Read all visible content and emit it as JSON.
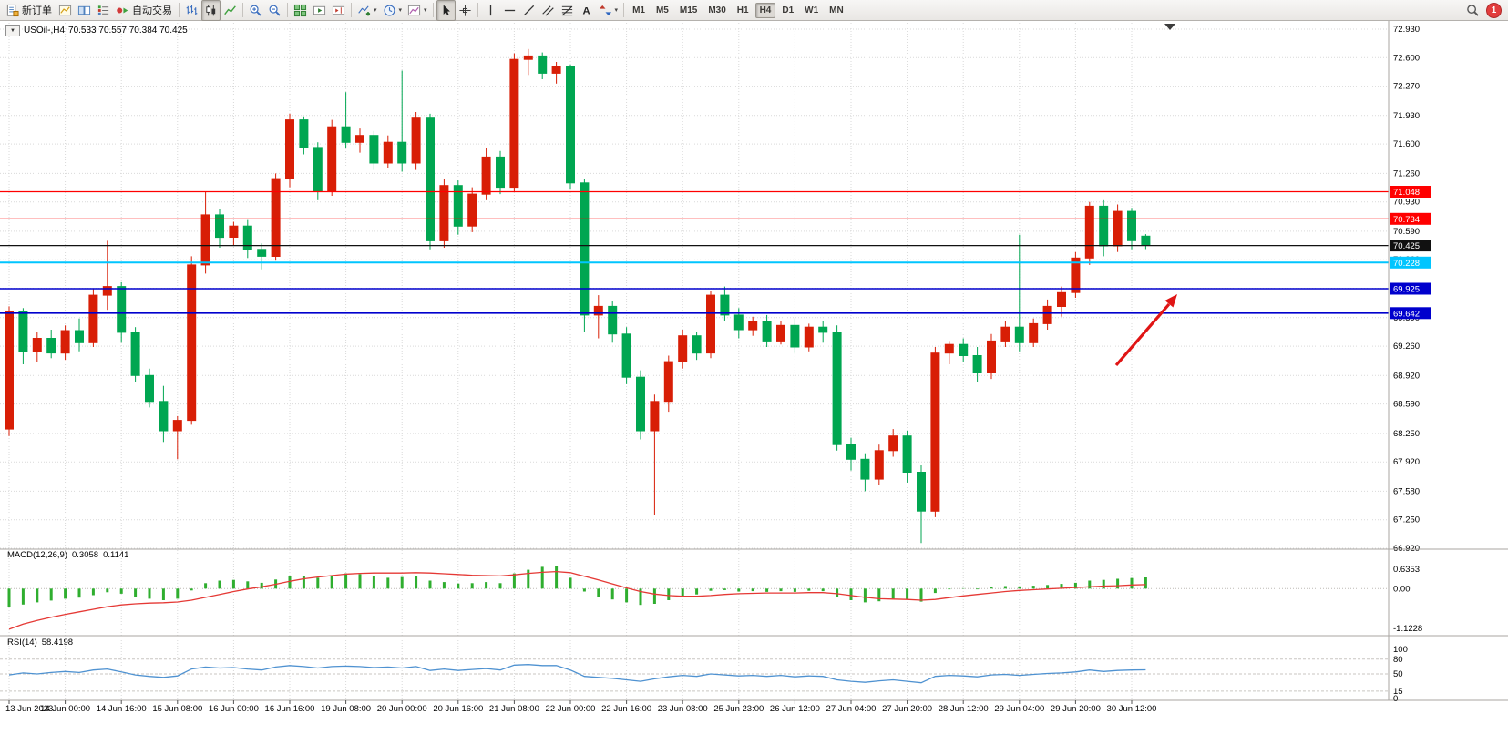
{
  "header": {
    "symbol_tf": "USOil-,H4",
    "ohlc": "70.533 70.557 70.384 70.425"
  },
  "toolbar": {
    "groups": [
      {
        "items": [
          {
            "name": "new-order-button",
            "icon": "new-order",
            "label": "新订单"
          },
          {
            "name": "new-chart-button",
            "icon": "new-chart"
          },
          {
            "name": "profiles-button",
            "icon": "profiles"
          },
          {
            "name": "market-watch-button",
            "icon": "market-watch"
          },
          {
            "name": "auto-trading-button",
            "icon": "auto-trading",
            "label": "自动交易"
          }
        ]
      },
      {
        "items": [
          {
            "name": "bar-chart-button",
            "icon": "bar-chart"
          },
          {
            "name": "candle-chart-button",
            "icon": "candle-chart",
            "active": true
          },
          {
            "name": "line-chart-button",
            "icon": "line-chart"
          }
        ]
      },
      {
        "items": [
          {
            "name": "zoom-in-button",
            "icon": "zoom-in"
          },
          {
            "name": "zoom-out-button",
            "icon": "zoom-out"
          }
        ]
      },
      {
        "items": [
          {
            "name": "tile-windows-button",
            "icon": "tile-windows"
          },
          {
            "name": "auto-scroll-button",
            "icon": "auto-scroll"
          },
          {
            "name": "chart-shift-button",
            "icon": "chart-shift"
          }
        ]
      },
      {
        "items": [
          {
            "name": "indicators-button",
            "icon": "indicators",
            "caret": true
          },
          {
            "name": "periods-button",
            "icon": "periods",
            "caret": true
          },
          {
            "name": "templates-button",
            "icon": "templates",
            "caret": true
          }
        ]
      },
      {
        "items": [
          {
            "name": "cursor-button",
            "icon": "cursor",
            "active": true
          },
          {
            "name": "crosshair-button",
            "icon": "crosshair"
          }
        ]
      },
      {
        "items": [
          {
            "name": "vertical-line-button",
            "icon": "vline"
          },
          {
            "name": "horizontal-line-button",
            "icon": "hline"
          },
          {
            "name": "trendline-button",
            "icon": "trendline"
          },
          {
            "name": "channel-button",
            "icon": "channel"
          },
          {
            "name": "fibonacci-button",
            "icon": "fibonacci"
          },
          {
            "name": "text-button",
            "icon": "text"
          },
          {
            "name": "arrows-button",
            "icon": "arrows",
            "caret": true
          }
        ]
      }
    ],
    "timeframes": [
      "M1",
      "M5",
      "M15",
      "M30",
      "H1",
      "H4",
      "D1",
      "W1",
      "MN"
    ],
    "active_timeframe": "H4",
    "notification_count": "1"
  },
  "chart_data": {
    "type": "candlestick",
    "symbol": "USOil-",
    "timeframe": "H4",
    "current_ohlc": {
      "open": 70.533,
      "high": 70.557,
      "low": 70.384,
      "close": 70.425
    },
    "colors": {
      "up": "#d81e06",
      "down": "#00a651",
      "macd_histogram": "#2fae2f",
      "macd_signal": "#e53935",
      "rsi_line": "#4f92d1",
      "grid": "#d9d9d9",
      "level_red": "#ff0000",
      "level_blue": "#0000cd",
      "level_cyan": "#00c5ff",
      "bid_black": "#111111",
      "arrow_red": "#e01515"
    },
    "price_axis": {
      "min": 66.92,
      "max": 72.93,
      "ticks": [
        72.93,
        72.6,
        72.27,
        71.93,
        71.6,
        71.26,
        70.93,
        70.59,
        70.26,
        69.93,
        69.59,
        69.26,
        68.92,
        68.59,
        68.25,
        67.92,
        67.58,
        67.25,
        66.92
      ]
    },
    "time_labels": [
      "13 Jun 2023",
      "14 Jun 00:00",
      "14 Jun 16:00",
      "15 Jun 08:00",
      "16 Jun 00:00",
      "16 Jun 16:00",
      "19 Jun 08:00",
      "20 Jun 00:00",
      "20 Jun 16:00",
      "21 Jun 08:00",
      "22 Jun 00:00",
      "22 Jun 16:00",
      "23 Jun 08:00",
      "25 Jun 23:00",
      "26 Jun 12:00",
      "27 Jun 04:00",
      "27 Jun 20:00",
      "28 Jun 12:00",
      "29 Jun 04:00",
      "29 Jun 20:00",
      "30 Jun 12:00"
    ],
    "candles": [
      [
        68.3,
        69.72,
        68.22,
        69.66
      ],
      [
        69.66,
        69.7,
        69.05,
        69.2
      ],
      [
        69.2,
        69.42,
        69.08,
        69.35
      ],
      [
        69.35,
        69.45,
        69.12,
        69.18
      ],
      [
        69.18,
        69.5,
        69.1,
        69.44
      ],
      [
        69.44,
        69.58,
        69.2,
        69.3
      ],
      [
        69.3,
        69.92,
        69.25,
        69.85
      ],
      [
        69.85,
        70.48,
        69.68,
        69.95
      ],
      [
        69.95,
        70.0,
        69.3,
        69.42
      ],
      [
        69.42,
        69.48,
        68.85,
        68.92
      ],
      [
        68.92,
        69.0,
        68.55,
        68.62
      ],
      [
        68.62,
        68.8,
        68.15,
        68.28
      ],
      [
        68.28,
        68.45,
        67.95,
        68.4
      ],
      [
        68.4,
        70.3,
        68.35,
        70.2
      ],
      [
        70.2,
        71.05,
        70.1,
        70.78
      ],
      [
        70.78,
        70.85,
        70.4,
        70.52
      ],
      [
        70.52,
        70.7,
        70.42,
        70.65
      ],
      [
        70.65,
        70.72,
        70.28,
        70.38
      ],
      [
        70.38,
        70.45,
        70.15,
        70.3
      ],
      [
        70.3,
        71.26,
        70.25,
        71.2
      ],
      [
        71.2,
        71.95,
        71.1,
        71.88
      ],
      [
        71.88,
        71.92,
        71.48,
        71.56
      ],
      [
        71.56,
        71.62,
        70.95,
        71.05
      ],
      [
        71.05,
        71.88,
        71.0,
        71.8
      ],
      [
        71.8,
        72.2,
        71.55,
        71.62
      ],
      [
        71.62,
        71.78,
        71.5,
        71.7
      ],
      [
        71.7,
        71.75,
        71.3,
        71.38
      ],
      [
        71.38,
        71.7,
        71.32,
        71.62
      ],
      [
        71.62,
        72.45,
        71.28,
        71.38
      ],
      [
        71.38,
        71.97,
        71.3,
        71.9
      ],
      [
        71.9,
        71.95,
        70.38,
        70.48
      ],
      [
        70.48,
        71.2,
        70.4,
        71.12
      ],
      [
        71.12,
        71.18,
        70.55,
        70.65
      ],
      [
        70.65,
        71.1,
        70.58,
        71.02
      ],
      [
        71.02,
        71.55,
        70.95,
        71.45
      ],
      [
        71.45,
        71.52,
        71.02,
        71.1
      ],
      [
        71.1,
        72.65,
        71.05,
        72.58
      ],
      [
        72.58,
        72.7,
        72.4,
        72.62
      ],
      [
        72.62,
        72.66,
        72.35,
        72.42
      ],
      [
        72.42,
        72.55,
        72.3,
        72.5
      ],
      [
        72.5,
        72.52,
        71.08,
        71.15
      ],
      [
        71.15,
        71.2,
        69.42,
        69.62
      ],
      [
        69.62,
        69.85,
        69.35,
        69.72
      ],
      [
        69.72,
        69.78,
        69.3,
        69.4
      ],
      [
        69.4,
        69.48,
        68.82,
        68.9
      ],
      [
        68.9,
        68.98,
        68.18,
        68.28
      ],
      [
        68.28,
        68.7,
        67.3,
        68.62
      ],
      [
        68.62,
        69.15,
        68.5,
        69.08
      ],
      [
        69.08,
        69.45,
        69.0,
        69.38
      ],
      [
        69.38,
        69.42,
        69.1,
        69.18
      ],
      [
        69.18,
        69.9,
        69.12,
        69.85
      ],
      [
        69.85,
        69.95,
        69.55,
        69.62
      ],
      [
        69.62,
        69.7,
        69.35,
        69.45
      ],
      [
        69.45,
        69.6,
        69.38,
        69.55
      ],
      [
        69.55,
        69.62,
        69.25,
        69.32
      ],
      [
        69.32,
        69.55,
        69.28,
        69.5
      ],
      [
        69.5,
        69.58,
        69.18,
        69.25
      ],
      [
        69.25,
        69.52,
        69.2,
        69.48
      ],
      [
        69.48,
        69.55,
        69.3,
        69.42
      ],
      [
        69.42,
        69.5,
        68.05,
        68.12
      ],
      [
        68.12,
        68.2,
        67.82,
        67.95
      ],
      [
        67.95,
        68.02,
        67.58,
        67.72
      ],
      [
        67.72,
        68.12,
        67.65,
        68.05
      ],
      [
        68.05,
        68.3,
        67.98,
        68.22
      ],
      [
        68.22,
        68.28,
        67.68,
        67.8
      ],
      [
        67.8,
        67.88,
        66.98,
        67.35
      ],
      [
        67.35,
        69.25,
        67.28,
        69.18
      ],
      [
        69.18,
        69.32,
        69.05,
        69.28
      ],
      [
        69.28,
        69.35,
        69.08,
        69.15
      ],
      [
        69.15,
        69.25,
        68.85,
        68.95
      ],
      [
        68.95,
        69.4,
        68.88,
        69.32
      ],
      [
        69.32,
        69.55,
        69.25,
        69.48
      ],
      [
        69.48,
        70.55,
        69.2,
        69.3
      ],
      [
        69.3,
        69.58,
        69.25,
        69.52
      ],
      [
        69.52,
        69.8,
        69.45,
        69.72
      ],
      [
        69.72,
        69.95,
        69.6,
        69.88
      ],
      [
        69.88,
        70.35,
        69.82,
        70.28
      ],
      [
        70.28,
        70.93,
        70.2,
        70.88
      ],
      [
        70.88,
        70.95,
        70.3,
        70.42
      ],
      [
        70.42,
        70.9,
        70.35,
        70.82
      ],
      [
        70.82,
        70.86,
        70.38,
        70.48
      ],
      [
        70.533,
        70.557,
        70.384,
        70.425
      ]
    ],
    "hlines": [
      {
        "price": 71.048,
        "color": "#ff0000",
        "width": 1.2
      },
      {
        "price": 70.734,
        "color": "#ff0000",
        "width": 1.2
      },
      {
        "price": 70.425,
        "color": "#111111",
        "width": 1.2
      },
      {
        "price": 70.228,
        "color": "#00c5ff",
        "width": 2
      },
      {
        "price": 69.925,
        "color": "#0000cd",
        "width": 1.6
      },
      {
        "price": 69.642,
        "color": "#0000cd",
        "width": 1.6
      }
    ],
    "arrow": {
      "color": "#e01515",
      "direction": "up-right"
    },
    "macd": {
      "label": "MACD(12,26,9)",
      "value_main": "0.3058",
      "value_signal": "0.1141",
      "max": 0.6353,
      "min": -1.1228,
      "axis_labels": [
        "0.6353",
        "0.00",
        "-1.1228"
      ],
      "histogram": [
        -0.52,
        -0.44,
        -0.38,
        -0.33,
        -0.28,
        -0.25,
        -0.18,
        -0.1,
        -0.14,
        -0.22,
        -0.28,
        -0.32,
        -0.28,
        -0.05,
        0.15,
        0.22,
        0.24,
        0.2,
        0.16,
        0.25,
        0.35,
        0.36,
        0.3,
        0.34,
        0.42,
        0.4,
        0.34,
        0.3,
        0.32,
        0.34,
        0.22,
        0.18,
        0.14,
        0.15,
        0.18,
        0.15,
        0.42,
        0.52,
        0.6,
        0.63,
        0.3,
        -0.08,
        -0.22,
        -0.3,
        -0.38,
        -0.45,
        -0.42,
        -0.32,
        -0.22,
        -0.16,
        -0.06,
        -0.04,
        -0.08,
        -0.07,
        -0.09,
        -0.07,
        -0.09,
        -0.06,
        -0.07,
        -0.22,
        -0.32,
        -0.38,
        -0.35,
        -0.28,
        -0.3,
        -0.36,
        -0.12,
        -0.02,
        0.01,
        -0.02,
        0.04,
        0.07,
        0.06,
        0.08,
        0.1,
        0.13,
        0.16,
        0.22,
        0.24,
        0.27,
        0.29,
        0.31
      ],
      "signal": [
        -1.12,
        -0.98,
        -0.88,
        -0.79,
        -0.71,
        -0.64,
        -0.57,
        -0.5,
        -0.45,
        -0.42,
        -0.4,
        -0.39,
        -0.37,
        -0.32,
        -0.24,
        -0.16,
        -0.08,
        -0.01,
        0.05,
        0.12,
        0.2,
        0.27,
        0.32,
        0.36,
        0.4,
        0.42,
        0.43,
        0.43,
        0.43,
        0.44,
        0.43,
        0.41,
        0.39,
        0.37,
        0.36,
        0.35,
        0.38,
        0.42,
        0.45,
        0.47,
        0.44,
        0.34,
        0.24,
        0.13,
        0.02,
        -0.08,
        -0.15,
        -0.19,
        -0.21,
        -0.21,
        -0.19,
        -0.16,
        -0.14,
        -0.13,
        -0.12,
        -0.12,
        -0.12,
        -0.11,
        -0.11,
        -0.14,
        -0.19,
        -0.24,
        -0.28,
        -0.29,
        -0.3,
        -0.32,
        -0.3,
        -0.25,
        -0.2,
        -0.16,
        -0.12,
        -0.08,
        -0.05,
        -0.03,
        -0.01,
        0.01,
        0.03,
        0.05,
        0.07,
        0.08,
        0.1,
        0.11
      ]
    },
    "rsi": {
      "label": "RSI(14)",
      "value": "58.4198",
      "levels": [
        100,
        80,
        50,
        15,
        0
      ],
      "level_lines": [
        80,
        50,
        15
      ],
      "values": [
        48,
        52,
        50,
        53,
        55,
        53,
        58,
        60,
        54,
        48,
        45,
        43,
        46,
        60,
        64,
        62,
        63,
        60,
        58,
        64,
        67,
        65,
        62,
        65,
        66,
        65,
        63,
        64,
        62,
        65,
        57,
        60,
        57,
        59,
        61,
        58,
        68,
        69,
        67,
        67,
        58,
        45,
        43,
        41,
        38,
        35,
        40,
        44,
        47,
        45,
        50,
        48,
        46,
        47,
        45,
        47,
        44,
        46,
        45,
        38,
        35,
        33,
        36,
        38,
        35,
        32,
        45,
        47,
        46,
        44,
        48,
        49,
        47,
        49,
        51,
        52,
        54,
        58,
        55,
        57,
        58,
        58.42
      ]
    }
  }
}
